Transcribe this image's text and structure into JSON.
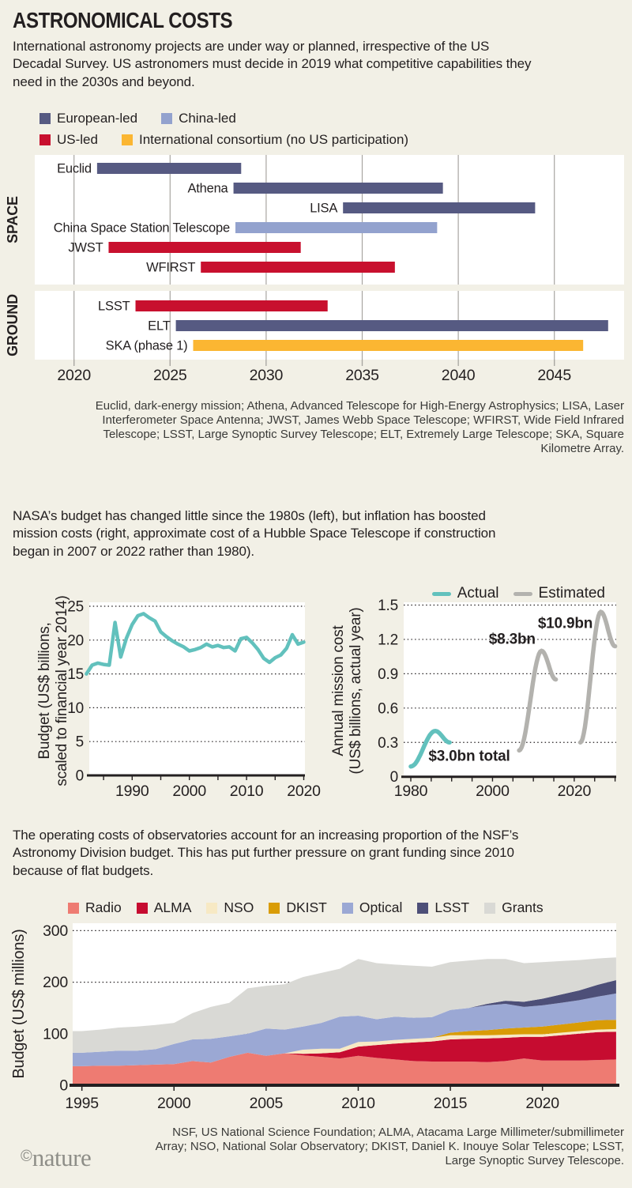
{
  "header": {
    "title": "ASTRONOMICAL COSTS",
    "intro": "International astronomy projects are under way or planned, irrespective of the US Decadal Survey. US astronomers must decide in 2019 what competitive capabilities they need in the 2030s and beyond."
  },
  "nasa": {
    "intro": "NASA’s budget has changed little since the 1980s (left), but inflation has boosted mission costs (right, approximate cost of a Hubble Space Telescope if construction began in 2007 or 2022 rather than 1980)."
  },
  "nsf": {
    "intro": "The operating costs of observatories account for an increasing proportion of the NSF’s Astronomy Division budget. This has put further pressure on grant funding since 2010 because of flat budgets."
  },
  "footer": {
    "note": "NSF, US National Science Foundation; ALMA, Atacama Large Millimeter/submillimeter Array; NSO, National Solar Observatory; DKIST, Daniel K. Inouye Solar Telescope; LSST, Large Synoptic Survey Telescope.",
    "credit_symbol": "©",
    "credit_name": "nature"
  },
  "colors": {
    "page_bg": "#f2f0e6",
    "panel_bg": "#ffffff",
    "text": "#231f20",
    "footnote_text": "#3a3a38",
    "grid_gray": "#a8a6a1",
    "european": "#565a82",
    "china": "#93a2ce",
    "us": "#c8102e",
    "intl": "#fbb632",
    "teal": "#62c1bd",
    "gray": "#b3b2ae",
    "radio": "#ee7b72",
    "alma": "#c60c30",
    "nso": "#f7e9c4",
    "dkist": "#d99c06",
    "optical": "#9ba8d4",
    "lsst": "#4d4f78",
    "grants": "#d9d9d5",
    "nature_gray": "#8e8e88"
  },
  "chart_data": [
    {
      "type": "gantt",
      "x_domain": [
        2018,
        2048.6
      ],
      "x_ticks": [
        2020,
        2025,
        2030,
        2035,
        2040,
        2045
      ],
      "legend_rows": [
        [
          {
            "label": "European-led",
            "key": "european"
          },
          {
            "label": "China-led",
            "key": "china"
          }
        ],
        [
          {
            "label": "US-led",
            "key": "us"
          },
          {
            "label": "International consortium (no US participation)",
            "key": "intl"
          }
        ]
      ],
      "panels": [
        {
          "label": "SPACE",
          "rows": [
            {
              "name": "Euclid",
              "start": 2021.2,
              "end": 2028.7,
              "key": "european"
            },
            {
              "name": "Athena",
              "start": 2028.3,
              "end": 2039.2,
              "key": "european"
            },
            {
              "name": "LISA",
              "start": 2034.0,
              "end": 2044.0,
              "key": "european"
            },
            {
              "name": "China Space Station Telescope",
              "start": 2028.4,
              "end": 2038.9,
              "key": "china"
            },
            {
              "name": "JWST",
              "start": 2021.8,
              "end": 2031.8,
              "key": "us"
            },
            {
              "name": "WFIRST",
              "start": 2026.6,
              "end": 2036.7,
              "key": "us"
            }
          ]
        },
        {
          "label": "GROUND",
          "rows": [
            {
              "name": "LSST",
              "start": 2023.2,
              "end": 2033.2,
              "key": "us"
            },
            {
              "name": "ELT",
              "start": 2025.3,
              "end": 2047.8,
              "key": "european"
            },
            {
              "name": "SKA (phase 1)",
              "start": 2026.2,
              "end": 2046.5,
              "key": "intl"
            }
          ]
        }
      ],
      "footnote": "Euclid, dark-energy mission; Athena, Advanced Telescope for High-Energy Astrophysics; LISA, Laser Interferometer Space Antenna; JWST, James Webb Space Telescope; WFIRST, Wide Field Infrared Telescope; LSST, Large Synoptic Survey Telescope; ELT, Extremely Large Telescope; SKA, Square Kilometre Array."
    },
    {
      "type": "line",
      "ylabel_lines": [
        "Budget (US$ billions,",
        "scaled to financial year 2014)"
      ],
      "x_start": 1982,
      "values": [
        15.0,
        16.3,
        16.6,
        16.4,
        16.3,
        22.6,
        17.5,
        20.3,
        22.3,
        23.6,
        23.9,
        23.3,
        22.8,
        21.2,
        20.5,
        19.9,
        19.4,
        19.0,
        18.4,
        18.6,
        18.9,
        19.4,
        19.0,
        19.2,
        18.9,
        19.0,
        18.4,
        20.2,
        20.4,
        19.6,
        18.6,
        17.3,
        16.7,
        17.4,
        17.8,
        18.8,
        20.8,
        19.4,
        19.7
      ],
      "ylim": [
        0,
        25
      ],
      "y_ticks": [
        0,
        5,
        10,
        15,
        20,
        25
      ],
      "x_minor_ticks": [
        1985,
        1990,
        1995,
        2000,
        2005,
        2010,
        2015,
        2020
      ],
      "x_tick_labels": [
        1990,
        2000,
        2010,
        2020
      ],
      "series_key": "teal"
    },
    {
      "type": "curves",
      "ylabel_lines": [
        "Annual mission cost",
        "(US$ billions, actual year)"
      ],
      "legend": [
        {
          "label": "Actual",
          "key": "teal"
        },
        {
          "label": "Estimated",
          "key": "gray"
        }
      ],
      "ylim": [
        0,
        1.5
      ],
      "y_ticks": [
        0,
        0.3,
        0.6,
        0.9,
        1.2,
        1.5
      ],
      "x_minor_ticks": [
        1980,
        1985,
        1990,
        1995,
        2000,
        2005,
        2010,
        2015,
        2020,
        2025,
        2030
      ],
      "x_tick_labels": [
        1980,
        2000,
        2020
      ],
      "curves": [
        {
          "name": "Actual",
          "key": "teal",
          "start": [
            1980,
            0.09
          ],
          "peak": [
            1986,
            0.4
          ],
          "end": [
            1989.5,
            0.3
          ],
          "label": "$3.0bn total",
          "label_at": [
            1994.3,
            0.14
          ]
        },
        {
          "name": "Estimated 2007 build",
          "key": "gray",
          "start": [
            2006.5,
            0.23
          ],
          "peak": [
            2012,
            1.1
          ],
          "end": [
            2015.5,
            0.85
          ],
          "label": "$8.3bn",
          "label_at": [
            2004.8,
            1.16
          ]
        },
        {
          "name": "Estimated 2022 build",
          "key": "gray",
          "start": [
            2021.5,
            0.3
          ],
          "peak": [
            2026.5,
            1.44
          ],
          "end": [
            2030,
            1.14
          ],
          "label": "$10.9bn",
          "label_at": [
            2017.8,
            1.3
          ]
        }
      ]
    },
    {
      "type": "area",
      "ylabel": "Budget (US$ millions)",
      "x_start": 1995,
      "x_end": 2024,
      "ylim": [
        0,
        300
      ],
      "y_ticks": [
        0,
        100,
        200,
        300
      ],
      "x_tick_labels": [
        1995,
        2000,
        2005,
        2010,
        2015,
        2020
      ],
      "series": [
        {
          "name": "Radio",
          "key": "radio",
          "values": [
            37,
            38,
            38,
            39,
            40,
            41,
            47,
            44,
            55,
            63,
            57,
            62,
            58,
            55,
            52,
            57,
            53,
            50,
            47,
            46,
            46,
            46,
            45,
            47,
            52,
            48,
            48,
            48,
            49,
            50
          ]
        },
        {
          "name": "ALMA",
          "key": "alma",
          "values": [
            0,
            0,
            0,
            0,
            0,
            0,
            0,
            0,
            0,
            0,
            0,
            0,
            3,
            7,
            12,
            18,
            25,
            31,
            36,
            39,
            43,
            44,
            46,
            45,
            42,
            46,
            49,
            52,
            54,
            54
          ]
        },
        {
          "name": "NSO",
          "key": "nso",
          "values": [
            0,
            0,
            0,
            0,
            0,
            0,
            0,
            0,
            0,
            0,
            0,
            0,
            8,
            9,
            7,
            9,
            7,
            7,
            7,
            7,
            8,
            7,
            6,
            6,
            5,
            5,
            5,
            5,
            5,
            5
          ]
        },
        {
          "name": "DKIST",
          "key": "dkist",
          "values": [
            0,
            0,
            0,
            0,
            0,
            0,
            0,
            0,
            0,
            0,
            0,
            0,
            0,
            0,
            0,
            0,
            0,
            0,
            0,
            0,
            5,
            8,
            10,
            12,
            13,
            15,
            16,
            17,
            18,
            18
          ]
        },
        {
          "name": "Optical",
          "key": "optical",
          "values": [
            26,
            27,
            29,
            28,
            30,
            39,
            42,
            46,
            40,
            37,
            53,
            46,
            45,
            50,
            62,
            51,
            43,
            45,
            41,
            40,
            44,
            45,
            48,
            48,
            40,
            41,
            42,
            43,
            46,
            51
          ]
        },
        {
          "name": "LSST",
          "key": "lsst",
          "values": [
            0,
            0,
            0,
            0,
            0,
            0,
            0,
            0,
            0,
            0,
            0,
            0,
            0,
            0,
            0,
            0,
            0,
            0,
            0,
            0,
            0,
            0,
            3,
            6,
            10,
            13,
            16,
            19,
            23,
            26
          ]
        },
        {
          "name": "Grants",
          "key": "grants",
          "values": [
            42,
            43,
            45,
            47,
            47,
            41,
            51,
            62,
            65,
            88,
            83,
            88,
            96,
            97,
            93,
            110,
            109,
            101,
            101,
            98,
            93,
            92,
            87,
            81,
            75,
            71,
            65,
            59,
            51,
            44
          ]
        }
      ]
    }
  ]
}
